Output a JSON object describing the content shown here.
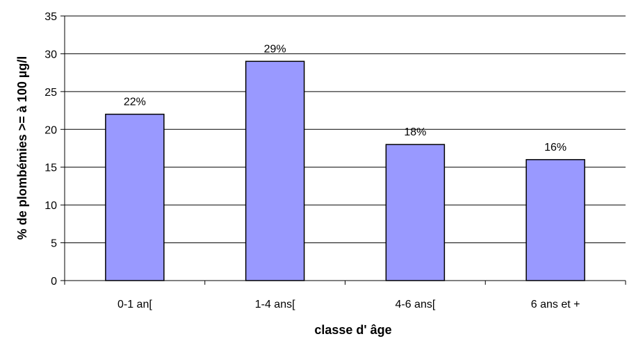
{
  "chart_data": {
    "type": "bar",
    "categories": [
      "0-1 an[",
      "1-4 ans[",
      "4-6 ans[",
      "6 ans et +"
    ],
    "values": [
      22,
      29,
      18,
      16
    ],
    "data_labels": [
      "22%",
      "29%",
      "18%",
      "16%"
    ],
    "xlabel": "classe d' âge",
    "ylabel": "% de plombémies >= à 100 µg/l",
    "ylim": [
      0,
      35
    ],
    "yticks": [
      0,
      5,
      10,
      15,
      20,
      25,
      30,
      35
    ],
    "grid": true,
    "legend": "none",
    "colors": {
      "bar_fill": "#9999ff",
      "bar_stroke": "#000000",
      "grid": "#000000"
    }
  }
}
